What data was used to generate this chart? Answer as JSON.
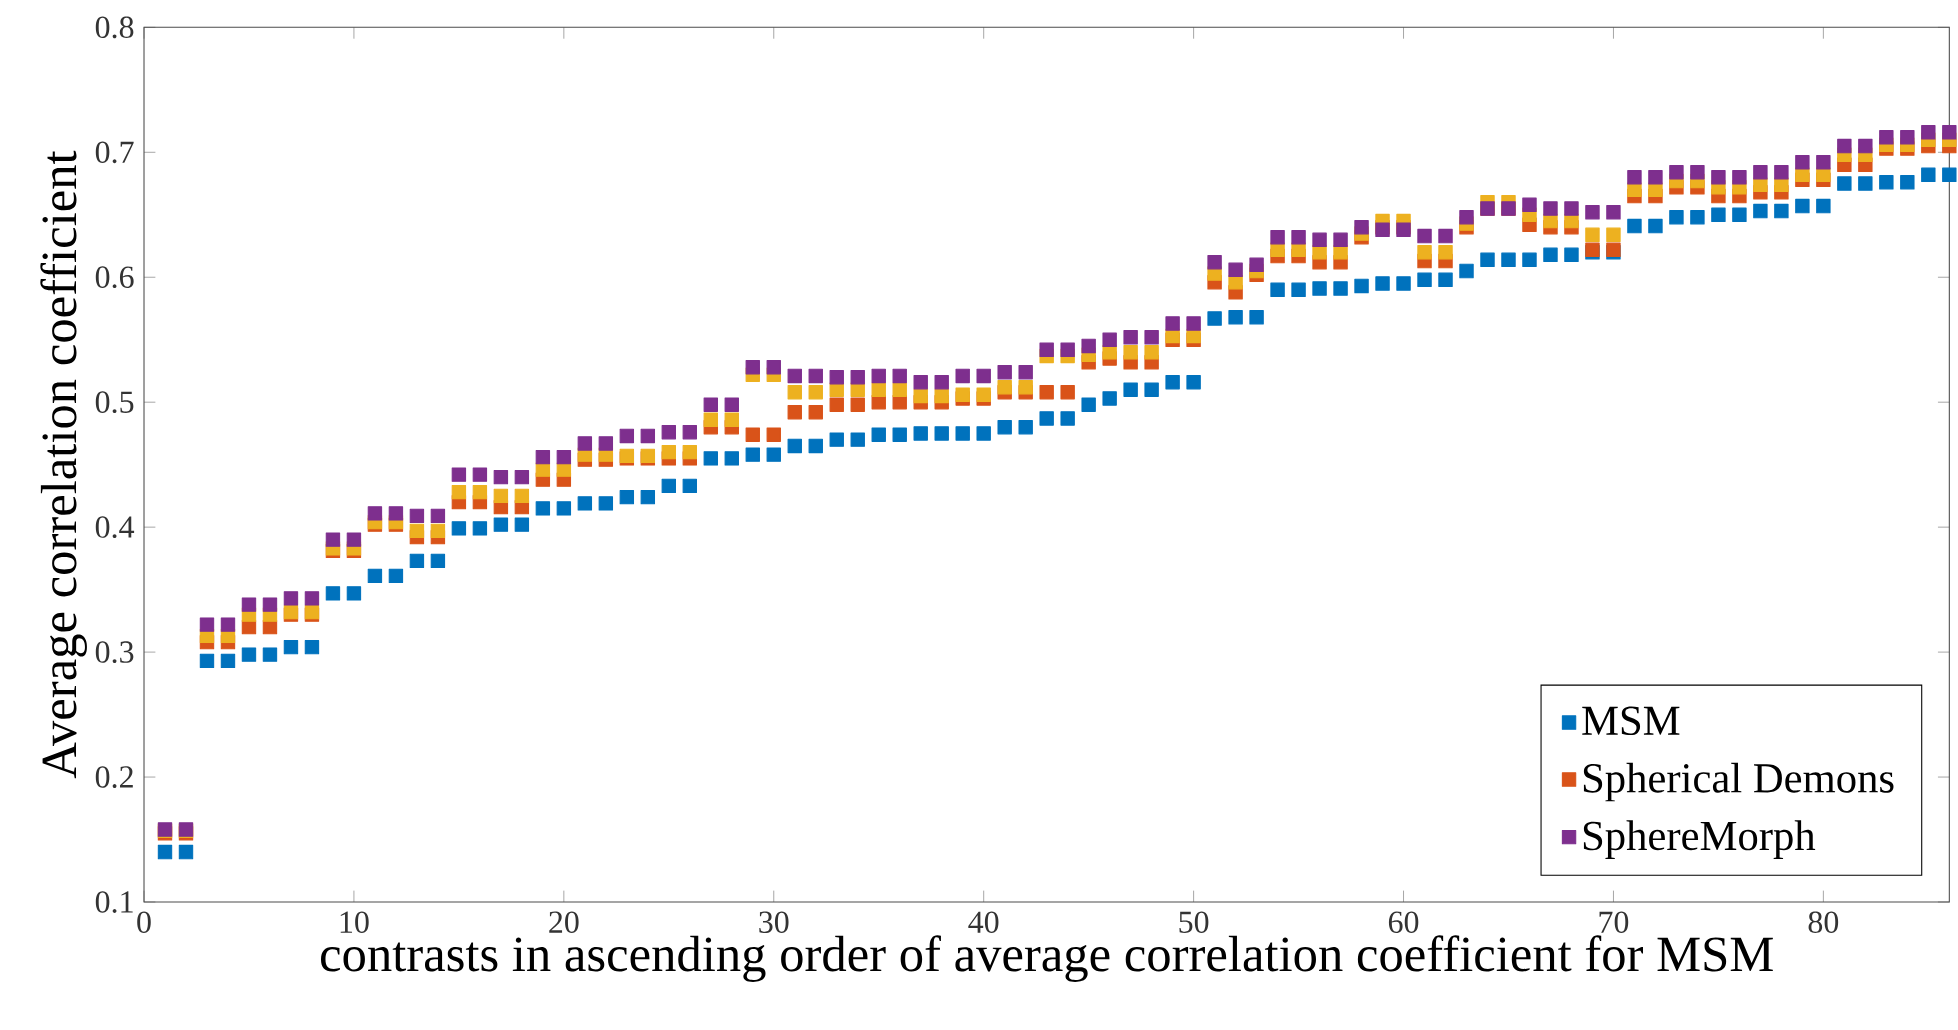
{
  "chart_data": {
    "type": "scatter",
    "xlabel": "contrasts in ascending order of  average correlation coefficient for MSM",
    "ylabel": "Average correlation coefficient",
    "x": [
      1,
      2,
      3,
      4,
      5,
      6,
      7,
      8,
      9,
      10,
      11,
      12,
      13,
      14,
      15,
      16,
      17,
      18,
      19,
      20,
      21,
      22,
      23,
      24,
      25,
      26,
      27,
      28,
      29,
      30,
      31,
      32,
      33,
      34,
      35,
      36,
      37,
      38,
      39,
      40,
      41,
      42,
      43,
      44,
      45,
      46,
      47,
      48,
      49,
      50,
      51,
      52,
      53,
      54,
      55,
      56,
      57,
      58,
      59,
      60,
      61,
      62,
      63,
      64,
      65,
      66,
      67,
      68,
      69,
      70,
      71,
      72,
      73,
      74,
      75,
      76,
      77,
      78,
      79,
      80,
      81,
      82,
      83,
      84,
      85,
      86
    ],
    "series": [
      {
        "name": "MSM",
        "color": "#0072bd",
        "values": [
          0.14,
          0.14,
          0.293,
          0.293,
          0.298,
          0.298,
          0.304,
          0.304,
          0.347,
          0.347,
          0.361,
          0.361,
          0.373,
          0.373,
          0.399,
          0.399,
          0.402,
          0.402,
          0.415,
          0.415,
          0.419,
          0.419,
          0.424,
          0.424,
          0.433,
          0.433,
          0.455,
          0.455,
          0.458,
          0.458,
          0.465,
          0.465,
          0.47,
          0.47,
          0.474,
          0.474,
          0.475,
          0.475,
          0.475,
          0.475,
          0.48,
          0.48,
          0.487,
          0.487,
          0.498,
          0.503,
          0.51,
          0.51,
          0.516,
          0.516,
          0.567,
          0.568,
          0.568,
          0.59,
          0.59,
          0.591,
          0.591,
          0.593,
          0.595,
          0.595,
          0.598,
          0.598,
          0.605,
          0.614,
          0.614,
          0.614,
          0.618,
          0.618,
          0.62,
          0.62,
          0.641,
          0.641,
          0.648,
          0.648,
          0.65,
          0.65,
          0.653,
          0.653,
          0.657,
          0.657,
          0.675,
          0.675,
          0.676,
          0.676,
          0.682,
          0.682
        ]
      },
      {
        "name": "Spherical Demons",
        "color": "#d95319",
        "values": [
          0.155,
          0.155,
          0.308,
          0.308,
          0.32,
          0.32,
          0.33,
          0.33,
          0.381,
          0.381,
          0.402,
          0.402,
          0.392,
          0.392,
          0.42,
          0.42,
          0.416,
          0.416,
          0.438,
          0.438,
          0.454,
          0.454,
          0.455,
          0.455,
          0.455,
          0.455,
          0.48,
          0.48,
          0.474,
          0.474,
          0.492,
          0.492,
          0.498,
          0.498,
          0.5,
          0.5,
          0.5,
          0.5,
          0.503,
          0.503,
          0.508,
          0.508,
          0.508,
          0.508,
          0.532,
          0.535,
          0.532,
          0.532,
          0.55,
          0.55,
          0.596,
          0.588,
          0.602,
          0.617,
          0.617,
          0.612,
          0.612,
          0.632,
          0.64,
          0.64,
          0.613,
          0.613,
          0.64,
          0.655,
          0.655,
          0.642,
          0.64,
          0.64,
          0.622,
          0.622,
          0.665,
          0.665,
          0.672,
          0.672,
          0.665,
          0.665,
          0.668,
          0.668,
          0.678,
          0.678,
          0.69,
          0.69,
          0.703,
          0.703,
          0.705,
          0.705
        ]
      },
      {
        "color": "#edb120",
        "values": [
          0.157,
          0.157,
          0.313,
          0.313,
          0.33,
          0.33,
          0.332,
          0.332,
          0.383,
          0.383,
          0.404,
          0.404,
          0.397,
          0.397,
          0.428,
          0.428,
          0.425,
          0.425,
          0.446,
          0.446,
          0.458,
          0.458,
          0.457,
          0.457,
          0.46,
          0.46,
          0.486,
          0.486,
          0.522,
          0.522,
          0.508,
          0.508,
          0.51,
          0.51,
          0.51,
          0.51,
          0.505,
          0.505,
          0.506,
          0.506,
          0.512,
          0.512,
          0.537,
          0.537,
          0.538,
          0.54,
          0.54,
          0.54,
          0.553,
          0.553,
          0.603,
          0.596,
          0.605,
          0.622,
          0.622,
          0.62,
          0.62,
          0.635,
          0.645,
          0.645,
          0.62,
          0.62,
          0.643,
          0.66,
          0.66,
          0.65,
          0.645,
          0.645,
          0.634,
          0.634,
          0.67,
          0.67,
          0.677,
          0.677,
          0.672,
          0.672,
          0.674,
          0.674,
          0.682,
          0.682,
          0.698,
          0.698,
          0.706,
          0.706,
          0.71,
          0.71
        ]
      },
      {
        "name": "SphereMorph",
        "color": "#7e2f8e",
        "values": [
          0.158,
          0.158,
          0.322,
          0.322,
          0.338,
          0.338,
          0.343,
          0.343,
          0.39,
          0.39,
          0.411,
          0.411,
          0.409,
          0.409,
          0.442,
          0.442,
          0.44,
          0.44,
          0.456,
          0.456,
          0.467,
          0.467,
          0.473,
          0.473,
          0.476,
          0.476,
          0.498,
          0.498,
          0.528,
          0.528,
          0.521,
          0.521,
          0.52,
          0.52,
          0.521,
          0.521,
          0.516,
          0.516,
          0.521,
          0.521,
          0.524,
          0.524,
          0.542,
          0.542,
          0.545,
          0.55,
          0.552,
          0.552,
          0.563,
          0.563,
          0.612,
          0.606,
          0.61,
          0.632,
          0.632,
          0.63,
          0.63,
          0.64,
          0.638,
          0.638,
          0.633,
          0.633,
          0.648,
          0.655,
          0.655,
          0.658,
          0.655,
          0.655,
          0.652,
          0.652,
          0.68,
          0.68,
          0.684,
          0.684,
          0.68,
          0.68,
          0.684,
          0.684,
          0.692,
          0.692,
          0.705,
          0.705,
          0.712,
          0.712,
          0.716,
          0.716
        ]
      }
    ],
    "xlim": [
      0,
      86
    ],
    "xticks": [
      0,
      10,
      20,
      30,
      40,
      50,
      60,
      70,
      80
    ],
    "ylim": [
      0.1,
      0.8
    ],
    "yticks": [
      0.1,
      0.2,
      0.3,
      0.4,
      0.5,
      0.6,
      0.7,
      0.8
    ],
    "marker": "square",
    "legend": "bottom right",
    "grid": false
  }
}
